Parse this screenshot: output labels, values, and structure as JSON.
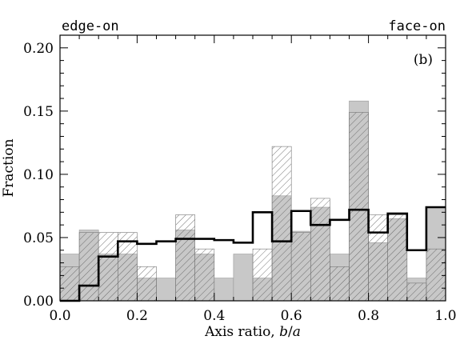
{
  "chart_data": {
    "type": "bar",
    "panel_label": "(b)",
    "corner_labels": {
      "left": "edge-on",
      "right": "face-on"
    },
    "xlabel": "Axis ratio, b/a",
    "xlabel_parts": {
      "prefix": "Axis ratio, ",
      "var1": "b",
      "slash": "/",
      "var2": "a"
    },
    "ylabel": "Fraction",
    "xlim": [
      0.0,
      1.0
    ],
    "ylim": [
      0.0,
      0.21
    ],
    "x_ticks": [
      "0.0",
      "0.2",
      "0.4",
      "0.6",
      "0.8",
      "1.0"
    ],
    "y_ticks": [
      "0.00",
      "0.05",
      "0.10",
      "0.15",
      "0.20"
    ],
    "bin_edges": [
      0.0,
      0.05,
      0.1,
      0.15,
      0.2,
      0.25,
      0.3,
      0.35,
      0.4,
      0.45,
      0.5,
      0.55,
      0.6,
      0.65,
      0.7,
      0.75,
      0.8,
      0.85,
      0.9,
      0.95,
      1.0
    ],
    "series": [
      {
        "style": "gray-filled",
        "values": [
          0.037,
          0.056,
          0.037,
          0.037,
          0.018,
          0.018,
          0.056,
          0.037,
          0.018,
          0.037,
          0.018,
          0.083,
          0.055,
          0.074,
          0.037,
          0.158,
          0.046,
          0.065,
          0.018,
          0.074
        ]
      },
      {
        "style": "hatched",
        "values": [
          0.027,
          0.054,
          0.054,
          0.054,
          0.027,
          0.0,
          0.068,
          0.041,
          0.0,
          0.0,
          0.041,
          0.122,
          0.054,
          0.081,
          0.027,
          0.149,
          0.068,
          0.068,
          0.014,
          0.041
        ]
      },
      {
        "style": "thick-outline",
        "values": [
          0.0,
          0.012,
          0.035,
          0.047,
          0.045,
          0.047,
          0.049,
          0.049,
          0.048,
          0.046,
          0.07,
          0.047,
          0.071,
          0.06,
          0.064,
          0.072,
          0.054,
          0.069,
          0.04,
          0.074
        ]
      }
    ]
  }
}
